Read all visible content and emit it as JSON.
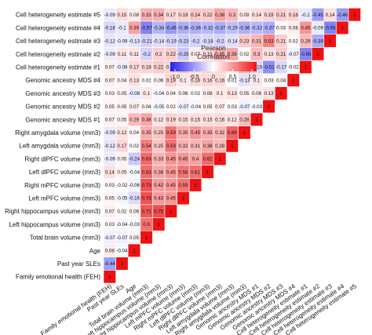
{
  "chart_data": {
    "type": "heatmap",
    "variables": [
      "Family emotional health (FEH)",
      "Past year SLEs",
      "Age",
      "Total brain volume (mm3)",
      "Left hippocampus volume (mm3)",
      "Right hippocampus volume (mm3)",
      "Left mPFC volume (mm3)",
      "Right mPFC volume (mm3)",
      "Left dlPFC volume (mm3)",
      "Right dlPFC volume (mm3)",
      "Left amygdala volume (mm3)",
      "Right amygdala volume (mm3)",
      "Genomic ancestry MDS #1",
      "Genomic ancestry MDS #2",
      "Genomic ancestry MDS #3",
      "Genomic ancestry MDS #4",
      "Cell heterogeneity estimate #1",
      "Cell heterogeneity estimate #2",
      "Cell heterogeneity estimate #3",
      "Cell heterogeneity estimate #4",
      "Cell heterogeneity estimate #5"
    ],
    "matrix": [
      [
        1,
        -0.44,
        0.08,
        -0.07,
        0.03,
        0.07,
        0.05,
        0.03,
        0.14,
        -0.09,
        -0.12,
        -0.09,
        0.07,
        0.05,
        0.03,
        0.07,
        0.07,
        -0.09,
        -0.12,
        -0.18,
        -0.09
      ],
      [
        -0.44,
        1,
        -0.04,
        -0.07,
        -0.04,
        0.02,
        -0.05,
        -0.02,
        0.05,
        0.05,
        0.17,
        0.12,
        0.05,
        0.05,
        0.05,
        0.04,
        -0.08,
        0.11,
        -0.09,
        -0.1,
        0.15
      ],
      [
        0.08,
        -0.04,
        1,
        0.05,
        -0.03,
        0.06,
        -0.16,
        -0.06,
        -0.04,
        -0.24,
        0.02,
        0.04,
        0.29,
        0.07,
        -0.08,
        0.13,
        0.17,
        0.11,
        -0.13,
        0.39,
        0.08
      ],
      [
        -0.07,
        -0.07,
        0.05,
        1,
        0.6,
        0.71,
        0.73,
        0.73,
        0.63,
        0.63,
        0.54,
        0.35,
        0.38,
        0.04,
        0.1,
        0.02,
        0.18,
        -0.2,
        -0.21,
        -0.57,
        0.33
      ],
      [
        0.03,
        -0.04,
        -0.03,
        0.6,
        1,
        0.75,
        0.43,
        0.42,
        0.38,
        0.33,
        0.25,
        0.25,
        0.12,
        -0.05,
        -0.04,
        0.06,
        0.22,
        0.2,
        -0.14,
        -0.34,
        0.34
      ],
      [
        0.07,
        0.02,
        0.06,
        0.71,
        0.75,
        1,
        0.45,
        0.45,
        0.45,
        0.45,
        0.59,
        0.59,
        0.19,
        0.02,
        0.04,
        0.19,
        0.19,
        0.22,
        -0.19,
        -0.46,
        0.17
      ],
      [
        0.05,
        -0.05,
        -0.16,
        0.73,
        0.43,
        0.45,
        1,
        0.59,
        0.58,
        0.45,
        0.32,
        0.35,
        0.15,
        -0.07,
        0.06,
        0.1,
        0.26,
        -0.25,
        -0.23,
        -0.36,
        0.19
      ],
      [
        0.03,
        -0.02,
        -0.06,
        0.73,
        0.42,
        0.45,
        0.59,
        1,
        0.61,
        0.4,
        0.31,
        0.45,
        0.15,
        -0.04,
        0.02,
        0.16,
        0.17,
        0.07,
        -0.2,
        -0.36,
        0.24
      ],
      [
        0.14,
        0.05,
        -0.04,
        0.63,
        0.38,
        0.45,
        0.58,
        0.61,
        1,
        0.62,
        0.38,
        0.35,
        0.15,
        0.05,
        0.08,
        0.16,
        0.19,
        0.15,
        -0.18,
        -0.32,
        0.22
      ],
      [
        -0.09,
        0.05,
        -0.24,
        0.63,
        0.33,
        0.45,
        0.45,
        0.4,
        0.62,
        1,
        0.29,
        0.32,
        0.16,
        0.07,
        0.1,
        0.16,
        0.19,
        0.35,
        -0.2,
        -0.37,
        0.38
      ],
      [
        -0.12,
        0.17,
        0.02,
        0.54,
        0.25,
        0.59,
        0.32,
        0.31,
        0.38,
        0.29,
        1,
        0.66,
        0.12,
        0.03,
        0.13,
        0.01,
        0.06,
        0.38,
        -0.14,
        -0.29,
        0.3
      ],
      [
        -0.09,
        0.12,
        0.04,
        0.35,
        0.25,
        0.59,
        0.35,
        0.45,
        0.35,
        0.32,
        0.66,
        1,
        0.28,
        -0.07,
        0.05,
        -0.13,
        0.34,
        0.02,
        0.23,
        -0.36,
        0.09
      ],
      [
        0.07,
        0.05,
        0.29,
        0.38,
        0.12,
        0.19,
        0.15,
        0.15,
        0.15,
        0.16,
        0.12,
        0.28,
        1,
        -0.03,
        0.08,
        0.1,
        -0.19,
        0.3,
        0.31,
        -0.32,
        0.14
      ],
      [
        0.05,
        0.05,
        0.07,
        0.04,
        -0.05,
        0.02,
        -0.07,
        -0.04,
        0.05,
        0.07,
        0.03,
        -0.07,
        -0.03,
        1,
        0.13,
        0.03,
        -0.51,
        0.13,
        0.53,
        -0.37,
        0.19
      ],
      [
        0.03,
        0.05,
        -0.08,
        0.1,
        -0.04,
        0.04,
        0.06,
        0.02,
        0.08,
        0.1,
        0.13,
        0.05,
        0.08,
        0.13,
        1,
        0.04,
        -0.17,
        0.21,
        0.21,
        0.03,
        0.21
      ],
      [
        0.07,
        0.04,
        0.13,
        0.02,
        0.06,
        0.19,
        0.1,
        0.16,
        0.16,
        0.16,
        0.01,
        -0.13,
        0.1,
        0.03,
        0.04,
        1,
        -0.02,
        -0.07,
        0.02,
        0.08,
        0.18
      ],
      [
        0.07,
        -0.08,
        0.17,
        0.18,
        0.22,
        0.19,
        0.26,
        0.17,
        0.19,
        0.19,
        0.06,
        0.34,
        -0.19,
        -0.51,
        -0.17,
        -0.02,
        1,
        -0.56,
        0.29,
        0.45,
        -0.1
      ],
      [
        -0.09,
        0.11,
        0.11,
        -0.2,
        0.2,
        0.22,
        -0.25,
        0.07,
        0.15,
        0.35,
        0.38,
        0.02,
        0.3,
        0.13,
        0.21,
        -0.07,
        -0.56,
        1,
        -0.39,
        -0.09,
        -0.45
      ],
      [
        -0.12,
        -0.09,
        -0.13,
        -0.21,
        -0.14,
        -0.19,
        -0.23,
        -0.2,
        -0.18,
        -0.2,
        -0.14,
        0.23,
        0.31,
        0.53,
        0.21,
        0.02,
        0.29,
        -0.39,
        1,
        -0.56,
        0.14
      ],
      [
        -0.18,
        -0.1,
        0.39,
        -0.57,
        -0.34,
        -0.46,
        -0.36,
        -0.36,
        -0.32,
        -0.37,
        -0.29,
        -0.36,
        -0.32,
        -0.37,
        0.03,
        0.08,
        0.45,
        -0.09,
        -0.56,
        1,
        -0.46
      ],
      [
        -0.09,
        0.15,
        0.08,
        0.33,
        0.34,
        0.17,
        0.19,
        0.24,
        0.22,
        0.38,
        0.3,
        0.09,
        0.14,
        0.19,
        0.21,
        0.18,
        -0.1,
        -0.45,
        0.14,
        -0.46,
        1
      ]
    ],
    "legend": {
      "title_line1": "Pearson",
      "title_line2": "Correlation",
      "ticks": [
        "-1.0",
        "-0.5",
        "0",
        "0.5",
        "1.0"
      ],
      "range": [
        -1,
        1
      ],
      "colors": {
        "negative": "#2222ee",
        "zero": "#ffffff",
        "positive": "#ee1111"
      }
    }
  }
}
